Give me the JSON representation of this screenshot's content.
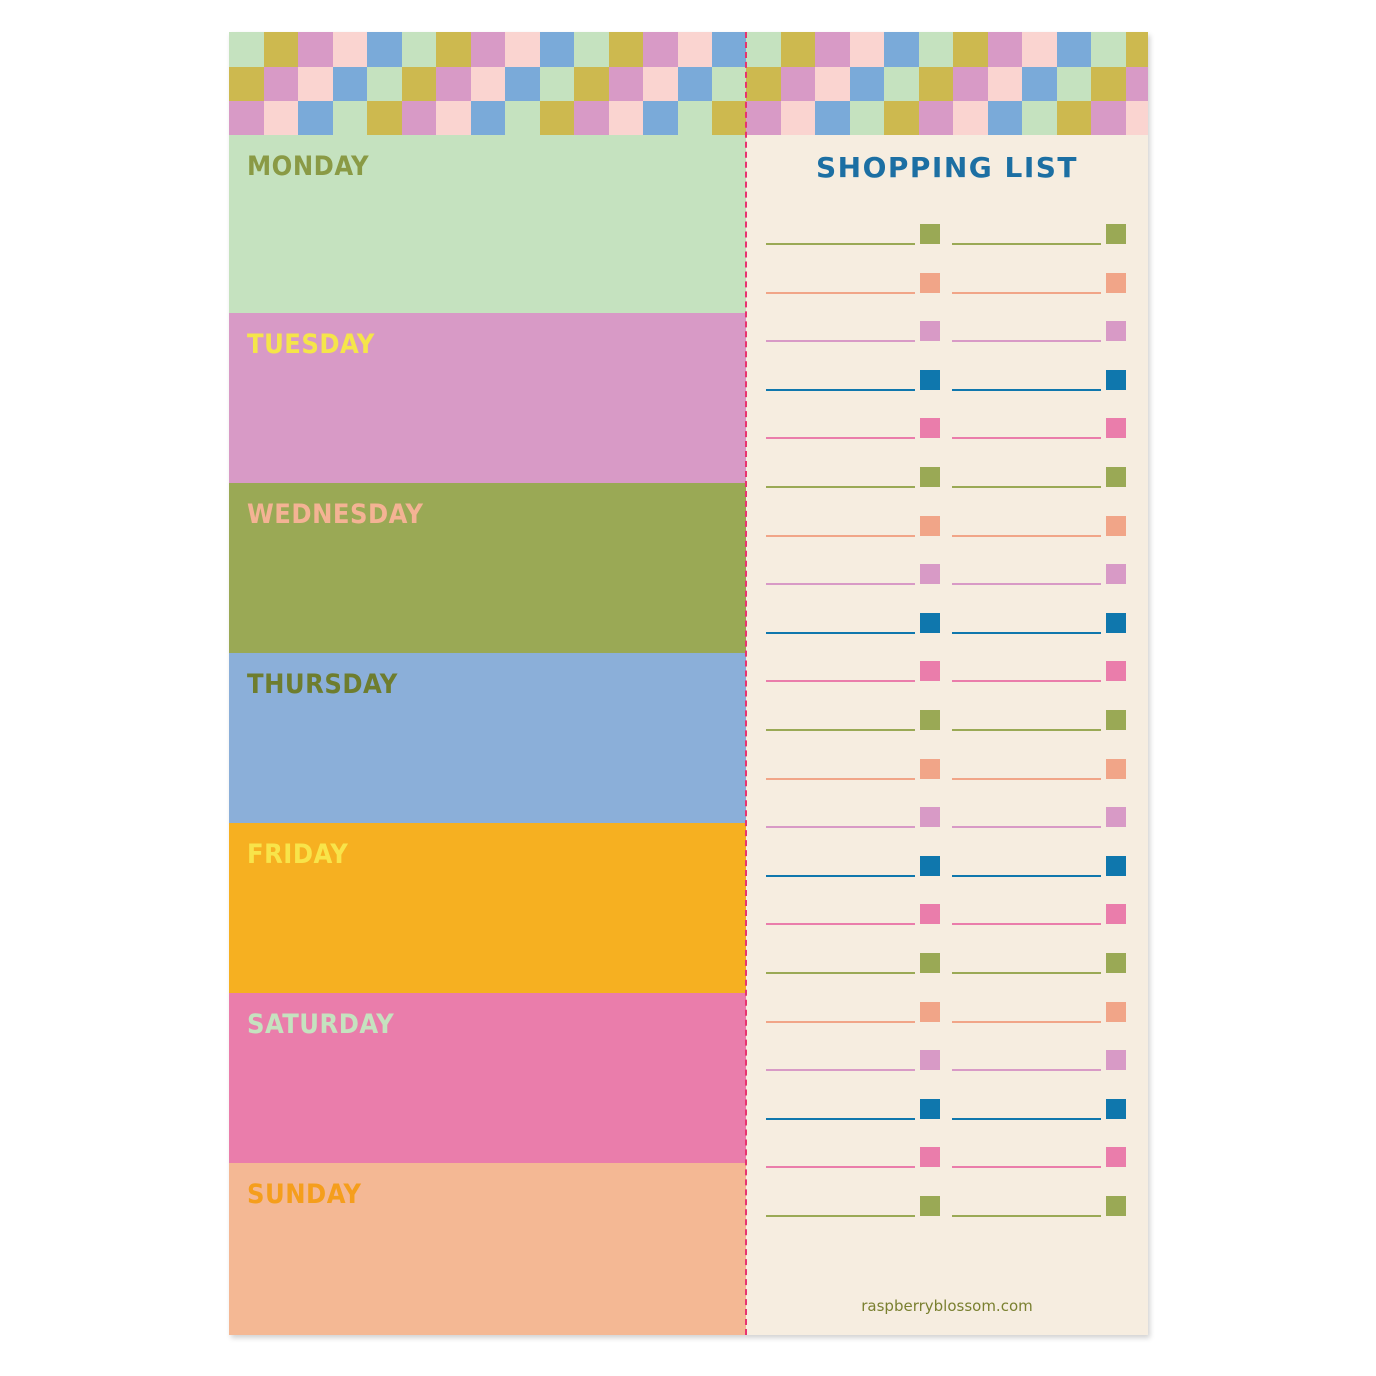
{
  "checker": {
    "colors": [
      "#c5e2bf",
      "#cdb94f",
      "#d89ac6",
      "#fad4d0",
      "#7aaad9"
    ]
  },
  "days": [
    {
      "label": "MONDAY",
      "bg": "#c5e2bf",
      "text_color": "#8a9a45"
    },
    {
      "label": "TUESDAY",
      "bg": "#d89ac6",
      "text_color": "#f5e54a"
    },
    {
      "label": "WEDNESDAY",
      "bg": "#9aa955",
      "text_color": "#f4b394"
    },
    {
      "label": "THURSDAY",
      "bg": "#8bafd9",
      "text_color": "#6e7d2e"
    },
    {
      "label": "FRIDAY",
      "bg": "#f6b021",
      "text_color": "#f8e44a"
    },
    {
      "label": "SATURDAY",
      "bg": "#ea7dab",
      "text_color": "#c5e2bf"
    },
    {
      "label": "SUNDAY",
      "bg": "#f4b894",
      "text_color": "#f59e1c"
    }
  ],
  "shopping_list": {
    "title": "SHOPPING LIST",
    "rows": 21,
    "columns": 2,
    "row_colors": [
      "#9aa955",
      "#f1a588",
      "#d89ac6",
      "#0f77ad",
      "#ea7dab"
    ]
  },
  "footer": "raspberryblossom.com"
}
